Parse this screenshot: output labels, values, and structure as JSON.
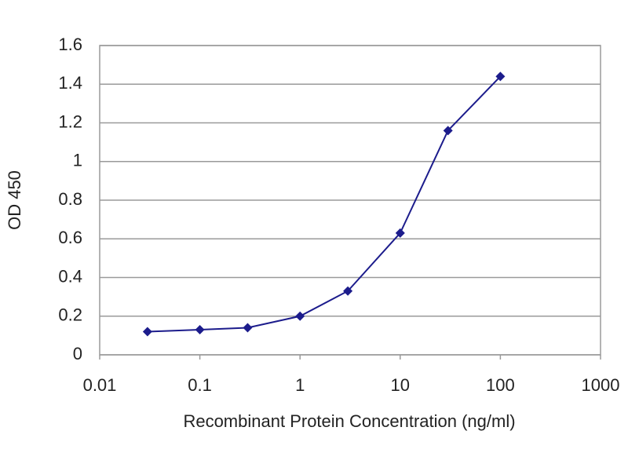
{
  "chart_data": {
    "type": "line",
    "x_label": "Recombinant Protein Concentration (ng/ml)",
    "y_label": "OD 450",
    "x": [
      0.03,
      0.1,
      0.3,
      1,
      3,
      10,
      30,
      100
    ],
    "series": [
      {
        "color": "#1c1c8c",
        "values": [
          0.12,
          0.13,
          0.14,
          0.2,
          0.33,
          0.63,
          1.16,
          1.44
        ]
      }
    ],
    "xscale": "log",
    "xlim": [
      0.01,
      1000
    ],
    "xticks": [
      0.01,
      0.1,
      1,
      10,
      100,
      1000
    ],
    "ylim": [
      0,
      1.6
    ],
    "yticks": [
      0,
      0.2,
      0.4,
      0.6,
      0.8,
      1,
      1.2,
      1.4,
      1.6
    ],
    "grid": true
  }
}
